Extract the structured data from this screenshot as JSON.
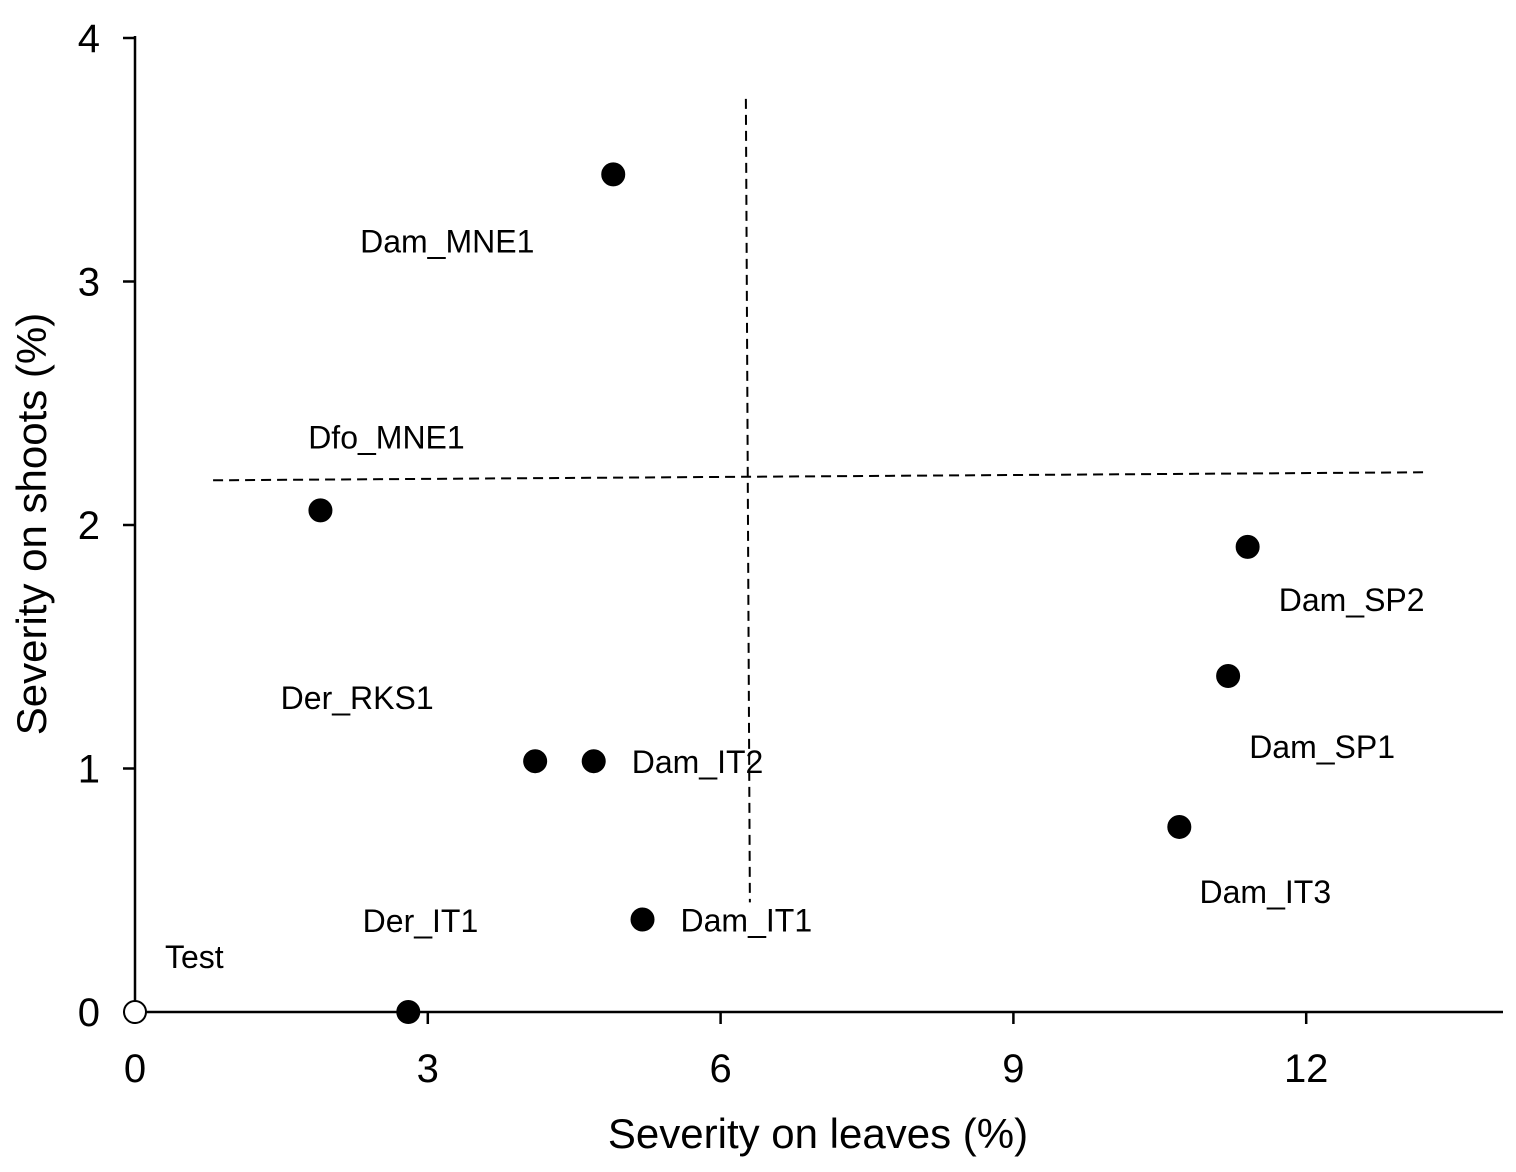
{
  "chart_data": {
    "type": "scatter",
    "title": "",
    "xlabel": "Severity on leaves (%)",
    "ylabel": "Severity on shoots (%)",
    "xlim": [
      0,
      14
    ],
    "ylim": [
      0,
      4
    ],
    "xticks": [
      0,
      3,
      6,
      9,
      12
    ],
    "yticks": [
      0,
      1,
      2,
      3,
      4
    ],
    "grid": false,
    "points": [
      {
        "label": "Test",
        "x": 0,
        "y": 0,
        "filled": false
      },
      {
        "label": "Der_IT1",
        "x": 2.8,
        "y": 0,
        "filled": true
      },
      {
        "label": "Dfo_MNE1",
        "x": 1.9,
        "y": 2.06,
        "filled": true
      },
      {
        "label": "Dam_MNE1",
        "x": 4.9,
        "y": 3.44,
        "filled": true
      },
      {
        "label": "Der_RKS1",
        "x": 4.1,
        "y": 1.03,
        "filled": true
      },
      {
        "label": "Dam_IT2",
        "x": 4.7,
        "y": 1.03,
        "filled": true
      },
      {
        "label": "Dam_IT1",
        "x": 5.2,
        "y": 0.38,
        "filled": true
      },
      {
        "label": "Dam_IT3",
        "x": 10.7,
        "y": 0.76,
        "filled": true
      },
      {
        "label": "Dam_SP1",
        "x": 11.2,
        "y": 1.38,
        "filled": true
      },
      {
        "label": "Dam_SP2",
        "x": 11.4,
        "y": 1.91,
        "filled": true
      }
    ],
    "reference_lines": [
      {
        "orientation": "vertical",
        "style": "dashed",
        "x": 6.3,
        "y_range": [
          0.45,
          3.75
        ]
      },
      {
        "orientation": "horizontal",
        "style": "dashed",
        "y": 2.2,
        "x_range": [
          0.8,
          13.2
        ]
      }
    ]
  }
}
